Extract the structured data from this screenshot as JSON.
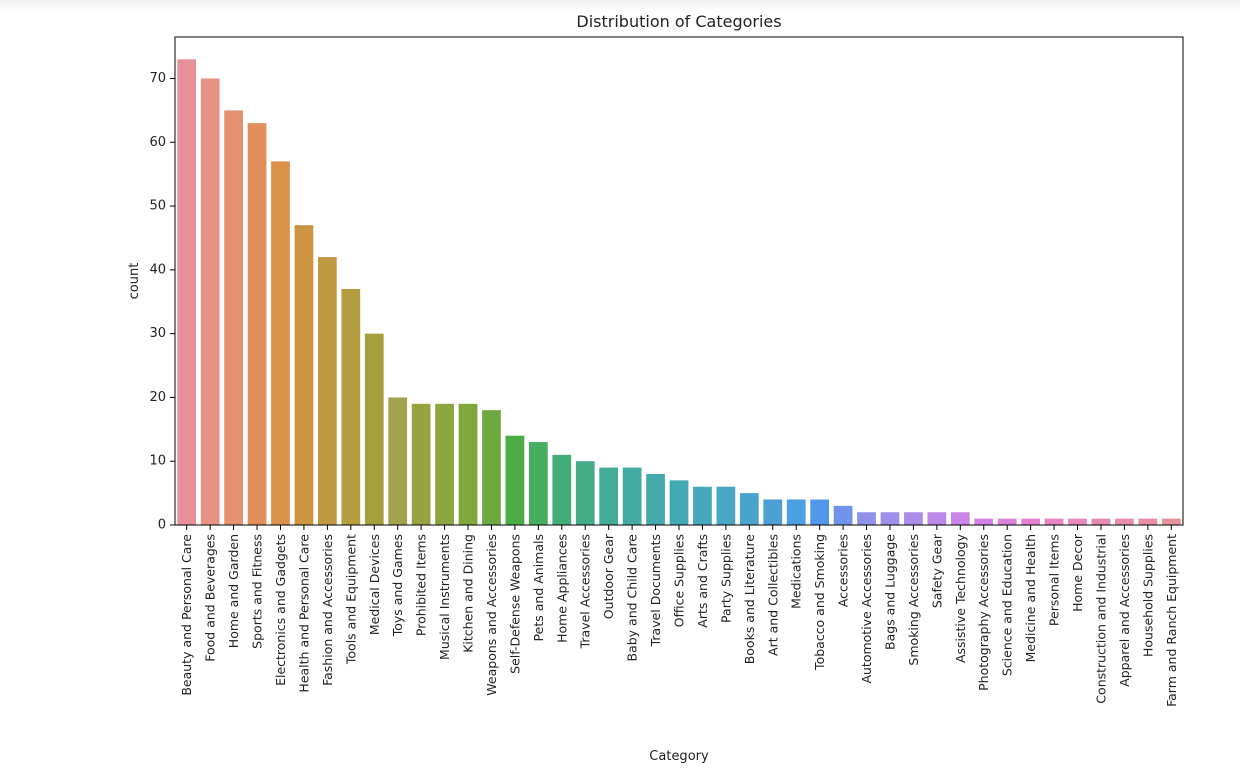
{
  "chart_data": {
    "type": "bar",
    "title": "Distribution of Categories",
    "xlabel": "Category",
    "ylabel": "count",
    "ylim": [
      0,
      76.5
    ],
    "yticks": [
      0,
      10,
      20,
      30,
      40,
      50,
      60,
      70
    ],
    "grid": false,
    "categories": [
      "Beauty and Personal Care",
      "Food and Beverages",
      "Home and Garden",
      "Sports and Fitness",
      "Electronics and Gadgets",
      "Health and Personal Care",
      "Fashion and Accessories",
      "Tools and Equipment",
      "Medical Devices",
      "Toys and Games",
      "Prohibited Items",
      "Musical Instruments",
      "Kitchen and Dining",
      "Weapons and Accessories",
      "Self-Defense Weapons",
      "Pets and Animals",
      "Home Appliances",
      "Travel Accessories",
      "Outdoor Gear",
      "Baby and Child Care",
      "Travel Documents",
      "Office Supplies",
      "Arts and Crafts",
      "Party Supplies",
      "Books and Literature",
      "Art and Collectibles",
      "Medications",
      "Tobacco and Smoking",
      "Accessories",
      "Automotive Accessories",
      "Bags and Luggage",
      "Smoking Accessories",
      "Safety Gear",
      "Assistive Technology",
      "Photography Accessories",
      "Science and Education",
      "Medicine and Health",
      "Personal Items",
      "Home Decor",
      "Construction and Industrial",
      "Apparel and Accessories",
      "Household Supplies",
      "Farm and Ranch Equipment"
    ],
    "values": [
      73,
      70,
      65,
      63,
      57,
      47,
      42,
      37,
      30,
      20,
      19,
      19,
      19,
      18,
      14,
      13,
      11,
      10,
      9,
      9,
      8,
      7,
      6,
      6,
      5,
      4,
      4,
      4,
      3,
      2,
      2,
      2,
      2,
      2,
      1,
      1,
      1,
      1,
      1,
      1,
      1,
      1,
      1
    ],
    "colors": [
      "#e8909a",
      "#e69284",
      "#e5906e",
      "#e2905b",
      "#da9149",
      "#cd9542",
      "#c29943",
      "#b49c41",
      "#a59f3e",
      "#a2a24d",
      "#96a340",
      "#8da53f",
      "#7fa73e",
      "#6da93f",
      "#4cac45",
      "#45ae5f",
      "#43ad79",
      "#44ad88",
      "#43ac96",
      "#43aba1",
      "#44aaaa",
      "#43a9b3",
      "#45a8bb",
      "#48a7c4",
      "#48a4cc",
      "#4ba1d6",
      "#4c9fe0",
      "#5297ea",
      "#6f93ea",
      "#8e92ea",
      "#9f8fea",
      "#ad8ce9",
      "#bc89e9",
      "#cb85e7",
      "#d381e3",
      "#dc81da",
      "#e37fd2",
      "#e684c6",
      "#e787bd",
      "#e889b3",
      "#e98cab",
      "#e98ea3",
      "#e8909b"
    ]
  }
}
